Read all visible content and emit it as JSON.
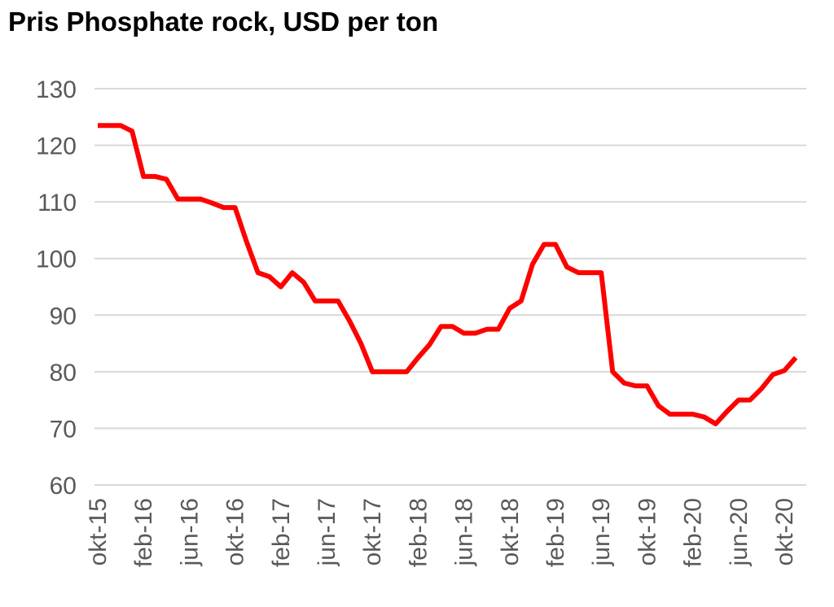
{
  "chart_data": {
    "type": "line",
    "title": "Pris Phosphate rock, USD per ton",
    "xlabel": "",
    "ylabel": "",
    "ylim": [
      60,
      130
    ],
    "yticks": [
      60,
      70,
      80,
      90,
      100,
      110,
      120,
      130
    ],
    "grid": true,
    "legend": "none",
    "line_color": "#ff0000",
    "x_ticks": [
      "okt-15",
      "feb-16",
      "jun-16",
      "okt-16",
      "feb-17",
      "jun-17",
      "okt-17",
      "feb-18",
      "jun-18",
      "okt-18",
      "feb-19",
      "jun-19",
      "okt-19",
      "feb-20",
      "jun-20",
      "okt-20"
    ],
    "x": [
      "okt-15",
      "nov-15",
      "dec-15",
      "jan-16",
      "feb-16",
      "mar-16",
      "apr-16",
      "maj-16",
      "jun-16",
      "jul-16",
      "aug-16",
      "sep-16",
      "okt-16",
      "nov-16",
      "dec-16",
      "jan-17",
      "feb-17",
      "mar-17",
      "apr-17",
      "maj-17",
      "jun-17",
      "jul-17",
      "aug-17",
      "sep-17",
      "okt-17",
      "nov-17",
      "dec-17",
      "jan-18",
      "feb-18",
      "mar-18",
      "apr-18",
      "maj-18",
      "jun-18",
      "jul-18",
      "aug-18",
      "sep-18",
      "okt-18",
      "nov-18",
      "dec-18",
      "jan-19",
      "feb-19",
      "mar-19",
      "apr-19",
      "maj-19",
      "jun-19",
      "jul-19",
      "aug-19",
      "sep-19",
      "okt-19",
      "nov-19",
      "dec-19",
      "jan-20",
      "feb-20",
      "mar-20",
      "apr-20",
      "maj-20",
      "jun-20",
      "jul-20",
      "aug-20",
      "sep-20",
      "okt-20",
      "nov-20"
    ],
    "values": [
      123.5,
      123.5,
      123.5,
      122.5,
      114.5,
      114.5,
      114.0,
      110.5,
      110.5,
      110.5,
      109.8,
      109.0,
      109.0,
      103.0,
      97.5,
      96.8,
      95.0,
      97.5,
      95.8,
      92.5,
      92.5,
      92.5,
      89.0,
      85.0,
      80.0,
      80.0,
      80.0,
      80.0,
      82.5,
      84.8,
      88.0,
      88.0,
      86.8,
      86.8,
      87.5,
      87.5,
      91.2,
      92.5,
      99.0,
      102.5,
      102.5,
      98.5,
      97.5,
      97.5,
      97.5,
      80.0,
      78.0,
      77.5,
      77.5,
      74.0,
      72.5,
      72.5,
      72.5,
      72.0,
      70.8,
      73.0,
      75.0,
      75.0,
      77.0,
      79.5,
      80.2,
      82.5
    ]
  }
}
